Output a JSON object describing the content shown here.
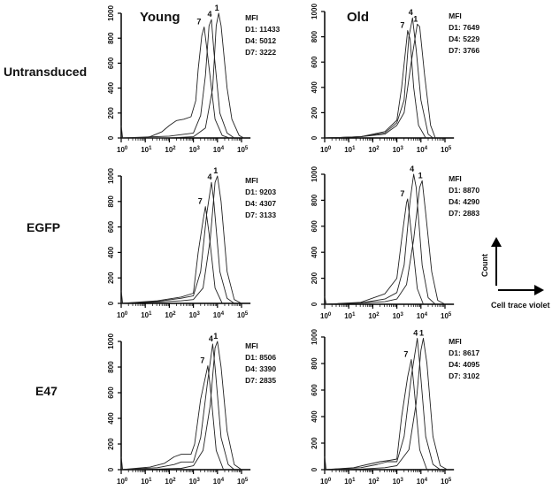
{
  "chart_data": {
    "type": "line",
    "title": "",
    "column_headers": [
      "Young",
      "Old"
    ],
    "row_labels": [
      "Untransduced",
      "EGFP",
      "E47"
    ],
    "xlabel": "Cell trace violet",
    "ylabel": "Count",
    "x_scale": "log",
    "xlim_log10": [
      0,
      5.3
    ],
    "ylim": [
      0,
      1000
    ],
    "x_tick_labels": [
      {
        "base": "10",
        "exp": "0"
      },
      {
        "base": "10",
        "exp": "1"
      },
      {
        "base": "10",
        "exp": "2"
      },
      {
        "base": "10",
        "exp": "3"
      },
      {
        "base": "10",
        "exp": "4"
      },
      {
        "base": "10",
        "exp": "5"
      }
    ],
    "y_ticks": [
      "0",
      "200",
      "400",
      "600",
      "800",
      "1000"
    ],
    "mfi_title": "MFI",
    "panels": [
      {
        "row": "Untransduced",
        "column": "Young",
        "mfi": [
          "D1: 11433",
          "D4: 5012",
          "D7: 3222"
        ],
        "series": [
          {
            "name": "1",
            "points": [
              [
                0,
                100
              ],
              [
                0.06,
                0
              ],
              [
                2,
                0
              ],
              [
                3,
                10
              ],
              [
                3.5,
                80
              ],
              [
                3.8,
                400
              ],
              [
                3.95,
                900
              ],
              [
                4.05,
                1000
              ],
              [
                4.15,
                900
              ],
              [
                4.4,
                400
              ],
              [
                4.6,
                150
              ],
              [
                4.9,
                20
              ],
              [
                5.1,
                0
              ]
            ]
          },
          {
            "name": "4",
            "points": [
              [
                0,
                0
              ],
              [
                2,
                15
              ],
              [
                3,
                40
              ],
              [
                3.3,
                180
              ],
              [
                3.5,
                500
              ],
              [
                3.65,
                900
              ],
              [
                3.75,
                950
              ],
              [
                3.85,
                700
              ],
              [
                4.1,
                200
              ],
              [
                4.4,
                40
              ],
              [
                4.7,
                0
              ]
            ]
          },
          {
            "name": "7",
            "points": [
              [
                0,
                0
              ],
              [
                0.9,
                0
              ],
              [
                1.2,
                10
              ],
              [
                1.7,
                50
              ],
              [
                2,
                100
              ],
              [
                2.3,
                140
              ],
              [
                2.6,
                150
              ],
              [
                2.9,
                170
              ],
              [
                3.1,
                300
              ],
              [
                3.2,
                550
              ],
              [
                3.35,
                820
              ],
              [
                3.45,
                890
              ],
              [
                3.6,
                650
              ],
              [
                3.9,
                150
              ],
              [
                4.2,
                20
              ],
              [
                4.5,
                0
              ]
            ]
          }
        ]
      },
      {
        "row": "Untransduced",
        "column": "Old",
        "mfi": [
          "D1: 7649",
          "D4: 5229",
          "D7: 3766"
        ],
        "series": [
          {
            "name": "1",
            "points": [
              [
                0,
                0
              ],
              [
                1.5,
                10
              ],
              [
                2.5,
                30
              ],
              [
                3.0,
                100
              ],
              [
                3.3,
                200
              ],
              [
                3.6,
                600
              ],
              [
                3.85,
                900
              ],
              [
                3.95,
                880
              ],
              [
                4.15,
                500
              ],
              [
                4.4,
                100
              ],
              [
                4.6,
                0
              ]
            ]
          },
          {
            "name": "4",
            "points": [
              [
                0,
                0
              ],
              [
                1.5,
                10
              ],
              [
                2.5,
                40
              ],
              [
                3.0,
                120
              ],
              [
                3.3,
                300
              ],
              [
                3.5,
                800
              ],
              [
                3.65,
                950
              ],
              [
                3.8,
                700
              ],
              [
                4.0,
                300
              ],
              [
                4.3,
                30
              ],
              [
                4.5,
                0
              ]
            ]
          },
          {
            "name": "7",
            "points": [
              [
                0,
                0
              ],
              [
                1.5,
                10
              ],
              [
                2.5,
                50
              ],
              [
                3.0,
                140
              ],
              [
                3.2,
                400
              ],
              [
                3.45,
                850
              ],
              [
                3.55,
                780
              ],
              [
                3.7,
                400
              ],
              [
                3.9,
                100
              ],
              [
                4.2,
                0
              ]
            ]
          }
        ]
      },
      {
        "row": "EGFP",
        "column": "Young",
        "mfi": [
          "D1: 9203",
          "D4: 4307",
          "D7: 3133"
        ],
        "series": [
          {
            "name": "1",
            "points": [
              [
                0,
                100
              ],
              [
                0.06,
                0
              ],
              [
                1.5,
                10
              ],
              [
                2.5,
                20
              ],
              [
                3.0,
                30
              ],
              [
                3.4,
                120
              ],
              [
                3.7,
                500
              ],
              [
                3.9,
                950
              ],
              [
                4.0,
                1000
              ],
              [
                4.15,
                800
              ],
              [
                4.4,
                250
              ],
              [
                4.7,
                30
              ],
              [
                5.0,
                0
              ]
            ]
          },
          {
            "name": "4",
            "points": [
              [
                0,
                0
              ],
              [
                1.5,
                15
              ],
              [
                2.5,
                40
              ],
              [
                3.0,
                60
              ],
              [
                3.3,
                250
              ],
              [
                3.55,
                700
              ],
              [
                3.75,
                950
              ],
              [
                3.85,
                800
              ],
              [
                4.1,
                250
              ],
              [
                4.4,
                40
              ],
              [
                4.7,
                0
              ]
            ]
          },
          {
            "name": "7",
            "points": [
              [
                0,
                0
              ],
              [
                1.5,
                20
              ],
              [
                2.5,
                50
              ],
              [
                3.0,
                80
              ],
              [
                3.2,
                400
              ],
              [
                3.4,
                650
              ],
              [
                3.5,
                760
              ],
              [
                3.65,
                550
              ],
              [
                3.9,
                120
              ],
              [
                4.2,
                0
              ]
            ]
          }
        ]
      },
      {
        "row": "EGFP",
        "column": "Old",
        "mfi": [
          "D1: 8870",
          "D4: 4290",
          "D7: 2883"
        ],
        "series": [
          {
            "name": "1",
            "points": [
              [
                0,
                60
              ],
              [
                0.06,
                0
              ],
              [
                1.5,
                10
              ],
              [
                2.5,
                20
              ],
              [
                3.0,
                40
              ],
              [
                3.4,
                150
              ],
              [
                3.7,
                500
              ],
              [
                3.95,
                900
              ],
              [
                4.05,
                950
              ],
              [
                4.2,
                700
              ],
              [
                4.45,
                250
              ],
              [
                4.7,
                30
              ],
              [
                5.0,
                0
              ]
            ]
          },
          {
            "name": "4",
            "points": [
              [
                0,
                0
              ],
              [
                1.5,
                10
              ],
              [
                2.5,
                40
              ],
              [
                3.0,
                90
              ],
              [
                3.3,
                300
              ],
              [
                3.55,
                800
              ],
              [
                3.7,
                1000
              ],
              [
                3.8,
                900
              ],
              [
                4.05,
                300
              ],
              [
                4.3,
                50
              ],
              [
                4.6,
                0
              ]
            ]
          },
          {
            "name": "7",
            "points": [
              [
                0,
                0
              ],
              [
                1.5,
                15
              ],
              [
                2.5,
                80
              ],
              [
                3.0,
                200
              ],
              [
                3.2,
                500
              ],
              [
                3.4,
                780
              ],
              [
                3.45,
                810
              ],
              [
                3.6,
                550
              ],
              [
                3.85,
                120
              ],
              [
                4.1,
                0
              ]
            ]
          }
        ]
      },
      {
        "row": "E47",
        "column": "Young",
        "mfi": [
          "D1: 8506",
          "D4: 3390",
          "D7: 2835"
        ],
        "series": [
          {
            "name": "1",
            "points": [
              [
                0,
                100
              ],
              [
                0.06,
                0
              ],
              [
                1.5,
                5
              ],
              [
                2.5,
                10
              ],
              [
                3.0,
                30
              ],
              [
                3.4,
                150
              ],
              [
                3.7,
                500
              ],
              [
                3.9,
                950
              ],
              [
                4.0,
                1000
              ],
              [
                4.15,
                800
              ],
              [
                4.4,
                300
              ],
              [
                4.7,
                40
              ],
              [
                5.0,
                0
              ]
            ]
          },
          {
            "name": "4",
            "points": [
              [
                0,
                0
              ],
              [
                1.5,
                15
              ],
              [
                2.2,
                40
              ],
              [
                2.5,
                60
              ],
              [
                3.0,
                60
              ],
              [
                3.3,
                250
              ],
              [
                3.6,
                700
              ],
              [
                3.8,
                980
              ],
              [
                3.9,
                800
              ],
              [
                4.15,
                250
              ],
              [
                4.45,
                40
              ],
              [
                4.7,
                0
              ]
            ]
          },
          {
            "name": "7",
            "points": [
              [
                0,
                0
              ],
              [
                1.2,
                20
              ],
              [
                1.8,
                50
              ],
              [
                2.2,
                100
              ],
              [
                2.5,
                120
              ],
              [
                2.9,
                120
              ],
              [
                3.05,
                200
              ],
              [
                3.3,
                550
              ],
              [
                3.6,
                810
              ],
              [
                3.7,
                650
              ],
              [
                3.95,
                150
              ],
              [
                4.25,
                0
              ]
            ]
          }
        ]
      },
      {
        "row": "E47",
        "column": "Old",
        "mfi": [
          "D1: 8617",
          "D4: 4095",
          "D7: 3102"
        ],
        "series": [
          {
            "name": "1",
            "points": [
              [
                0,
                100
              ],
              [
                0.06,
                0
              ],
              [
                1.5,
                5
              ],
              [
                2.5,
                15
              ],
              [
                3.0,
                30
              ],
              [
                3.5,
                150
              ],
              [
                3.8,
                500
              ],
              [
                4.0,
                900
              ],
              [
                4.1,
                990
              ],
              [
                4.25,
                800
              ],
              [
                4.5,
                250
              ],
              [
                4.8,
                30
              ],
              [
                5.1,
                0
              ]
            ]
          },
          {
            "name": "4",
            "points": [
              [
                0,
                0
              ],
              [
                1.5,
                15
              ],
              [
                2.2,
                40
              ],
              [
                2.6,
                60
              ],
              [
                3.0,
                60
              ],
              [
                3.3,
                250
              ],
              [
                3.6,
                700
              ],
              [
                3.85,
                990
              ],
              [
                3.95,
                800
              ],
              [
                4.2,
                250
              ],
              [
                4.5,
                40
              ],
              [
                4.8,
                0
              ]
            ]
          },
          {
            "name": "7",
            "points": [
              [
                0,
                0
              ],
              [
                1.2,
                15
              ],
              [
                1.8,
                40
              ],
              [
                2.3,
                60
              ],
              [
                2.7,
                70
              ],
              [
                3.0,
                80
              ],
              [
                3.2,
                400
              ],
              [
                3.45,
                700
              ],
              [
                3.6,
                830
              ],
              [
                3.7,
                650
              ],
              [
                3.95,
                150
              ],
              [
                4.25,
                0
              ]
            ]
          }
        ]
      }
    ]
  }
}
